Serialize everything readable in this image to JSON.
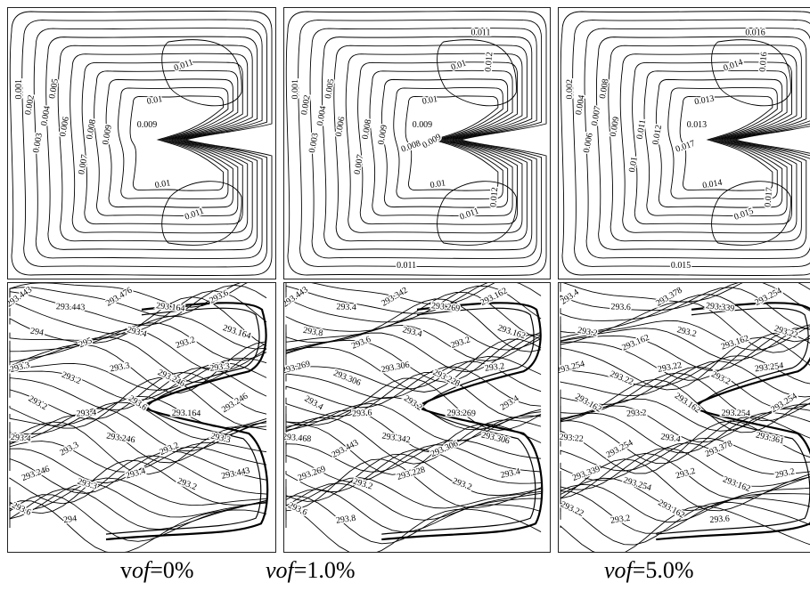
{
  "captions": [
    {
      "prefix": "v",
      "italic": "of",
      "suffix": "=0%"
    },
    {
      "prefix": "",
      "italic": "vof",
      "suffix": "=1.0%"
    },
    {
      "prefix": "",
      "italic": "vof",
      "suffix": "=5.0%"
    }
  ],
  "panels": [
    {
      "row": "stream",
      "labels": [
        "0.001",
        "0.002",
        "0.003",
        "0.004",
        "0.005",
        "0.006",
        "0.007",
        "0.008",
        "0.009",
        "0.009",
        "0.01",
        "0.01",
        "0.011",
        "0.011"
      ]
    },
    {
      "row": "stream",
      "labels": [
        "0.001",
        "0.002",
        "0.003",
        "0.004",
        "0.005",
        "0.006",
        "0.007",
        "0.008",
        "0.009",
        "0.009",
        "0.01",
        "0.01",
        "0.01",
        "0.011",
        "0.011",
        "0.011",
        "0.012",
        "0.012",
        "0.008",
        "0.009"
      ]
    },
    {
      "row": "stream",
      "labels": [
        "0.002",
        "0.004",
        "0.006",
        "0.007",
        "0.008",
        "0.009",
        "0.01",
        "0.011",
        "0.012",
        "0.013",
        "0.013",
        "0.014",
        "0.014",
        "0.015",
        "0.015",
        "0.016",
        "0.016",
        "0.017",
        "0.017"
      ]
    },
    {
      "row": "temp",
      "labels": [
        "293.443",
        "293.443",
        "293.476",
        "293.164",
        "293.6",
        "294",
        "295",
        "293.4",
        "293.2",
        "293.164",
        "293.3",
        "293.2",
        "293.3",
        "293.246",
        "293.3",
        "293.2",
        "293.4",
        "293.6",
        "293.164",
        "293.246",
        "293.4",
        "293.3",
        "293.246",
        "293.2",
        "293.3",
        "293.246",
        "293.3",
        "293.4",
        "293.2",
        "293.443",
        "293.6",
        "294"
      ]
    },
    {
      "row": "temp",
      "labels": [
        "293.443",
        "293.4",
        "293.342",
        "293.269",
        "293.162",
        "293.8",
        "293.6",
        "293.4",
        "293.2",
        "293.162",
        "293.269",
        "293.306",
        "293.306",
        "293.228",
        "293.2",
        "293.4",
        "293.6",
        "293.2",
        "293.269",
        "293.4",
        "293.468",
        "293.443",
        "293.342",
        "293.306",
        "293.306",
        "293.269",
        "293.2",
        "293.228",
        "293.2",
        "293.4",
        "293.6",
        "293.8"
      ]
    },
    {
      "row": "temp",
      "labels": [
        "293.4",
        "293.6",
        "293.378",
        "293.339",
        "293.254",
        "293.2",
        "293.162",
        "293.2",
        "293.162",
        "293.22",
        "293.254",
        "293.22",
        "293.22",
        "293.2",
        "293.254",
        "293.162",
        "293.2",
        "293.162",
        "293.254",
        "293.254",
        "293.22",
        "293.254",
        "293.4",
        "293.378",
        "293.361",
        "293.339",
        "293.254",
        "293.2",
        "293.162",
        "293.2",
        "293.22",
        "293.2",
        "293.162",
        "293.6"
      ]
    }
  ]
}
